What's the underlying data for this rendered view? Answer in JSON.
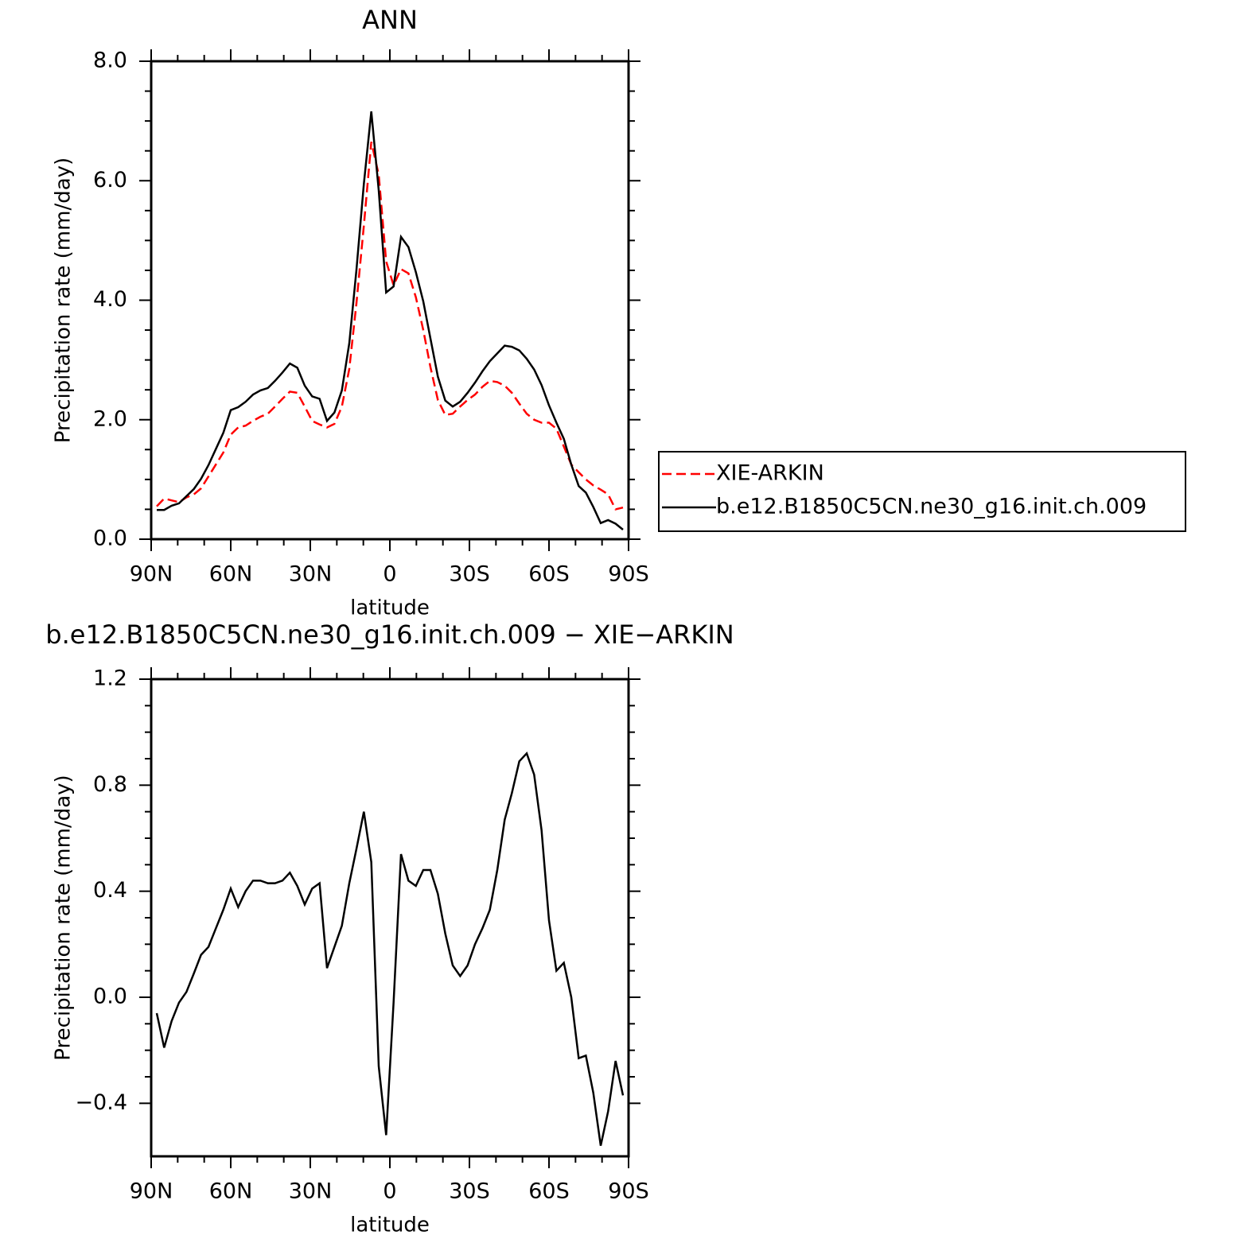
{
  "chart_data": [
    {
      "type": "line",
      "title": "ANN",
      "xlabel": "latitude",
      "ylabel": "Precipitation rate (mm/day)",
      "x": [
        87.9,
        85.1,
        82.3,
        79.5,
        76.7,
        73.9,
        71.2,
        68.4,
        65.6,
        62.8,
        60.0,
        57.2,
        54.4,
        51.6,
        48.8,
        46.0,
        43.3,
        40.5,
        37.7,
        34.9,
        32.1,
        29.3,
        26.5,
        23.7,
        20.9,
        18.1,
        15.3,
        12.6,
        9.8,
        7.0,
        4.2,
        1.4,
        -1.4,
        -4.2,
        -7.0,
        -9.8,
        -12.6,
        -15.3,
        -18.1,
        -20.9,
        -23.7,
        -26.5,
        -29.3,
        -32.1,
        -34.9,
        -37.7,
        -40.5,
        -43.3,
        -46.0,
        -48.8,
        -51.6,
        -54.4,
        -57.2,
        -60.0,
        -62.8,
        -65.6,
        -68.4,
        -71.2,
        -73.9,
        -76.7,
        -79.5,
        -82.3,
        -85.1,
        -87.9
      ],
      "series": [
        {
          "name": "XIE-ARKIN",
          "color": "#ff0000",
          "dash": true,
          "values": [
            0.55,
            0.68,
            0.65,
            0.62,
            0.7,
            0.75,
            0.85,
            1.05,
            1.25,
            1.45,
            1.75,
            1.87,
            1.9,
            1.98,
            2.05,
            2.1,
            2.22,
            2.35,
            2.47,
            2.45,
            2.22,
            1.98,
            1.92,
            1.87,
            1.93,
            2.22,
            2.85,
            3.95,
            5.25,
            6.65,
            6.1,
            4.65,
            4.25,
            4.52,
            4.45,
            4.05,
            3.5,
            2.88,
            2.33,
            2.08,
            2.1,
            2.22,
            2.33,
            2.42,
            2.55,
            2.65,
            2.63,
            2.57,
            2.45,
            2.27,
            2.1,
            2.0,
            1.95,
            1.95,
            1.85,
            1.55,
            1.25,
            1.12,
            1.0,
            0.9,
            0.83,
            0.75,
            0.5,
            0.53
          ]
        },
        {
          "name": "b.e12.B1850C5CN.ne30_g16.init.ch.009",
          "color": "#000000",
          "dash": false,
          "values": [
            0.49,
            0.49,
            0.56,
            0.6,
            0.72,
            0.84,
            1.01,
            1.24,
            1.51,
            1.78,
            2.16,
            2.21,
            2.3,
            2.42,
            2.49,
            2.53,
            2.65,
            2.79,
            2.94,
            2.87,
            2.57,
            2.39,
            2.35,
            1.98,
            2.12,
            2.49,
            3.28,
            4.51,
            5.95,
            7.16,
            5.84,
            4.13,
            4.23,
            5.06,
            4.89,
            4.47,
            3.98,
            3.36,
            2.72,
            2.32,
            2.22,
            2.3,
            2.45,
            2.62,
            2.81,
            2.98,
            3.11,
            3.24,
            3.22,
            3.16,
            3.02,
            2.84,
            2.58,
            2.24,
            1.95,
            1.68,
            1.25,
            0.89,
            0.78,
            0.54,
            0.27,
            0.32,
            0.26,
            0.16
          ]
        }
      ],
      "xlim": [
        90,
        -90
      ],
      "xticks": [
        {
          "value": 90,
          "label": "90N"
        },
        {
          "value": 60,
          "label": "60N"
        },
        {
          "value": 30,
          "label": "30N"
        },
        0,
        {
          "value": -30,
          "label": "30S"
        },
        {
          "value": -60,
          "label": "60S"
        },
        {
          "value": -90,
          "label": "90S"
        }
      ],
      "ylim": [
        0,
        8
      ],
      "yticks": [
        {
          "value": 0,
          "label": "0.0"
        },
        {
          "value": 2,
          "label": "2.0"
        },
        {
          "value": 4,
          "label": "4.0"
        },
        {
          "value": 6,
          "label": "6.0"
        },
        {
          "value": 8,
          "label": "8.0"
        }
      ],
      "legend": "outside right"
    },
    {
      "type": "line",
      "title": "b.e12.B1850C5CN.ne30_g16.init.ch.009 − XIE−ARKIN",
      "xlabel": "latitude",
      "ylabel": "Precipitation rate (mm/day)",
      "x": [
        87.9,
        85.1,
        82.3,
        79.5,
        76.7,
        73.9,
        71.2,
        68.4,
        65.6,
        62.8,
        60.0,
        57.2,
        54.4,
        51.6,
        48.8,
        46.0,
        43.3,
        40.5,
        37.7,
        34.9,
        32.1,
        29.3,
        26.5,
        23.7,
        20.9,
        18.1,
        15.3,
        12.6,
        9.8,
        7.0,
        4.2,
        1.4,
        -1.4,
        -4.2,
        -7.0,
        -9.8,
        -12.6,
        -15.3,
        -18.1,
        -20.9,
        -23.7,
        -26.5,
        -29.3,
        -32.1,
        -34.9,
        -37.7,
        -40.5,
        -43.3,
        -46.0,
        -48.8,
        -51.6,
        -54.4,
        -57.2,
        -60.0,
        -62.8,
        -65.6,
        -68.4,
        -71.2,
        -73.9,
        -76.7,
        -79.5,
        -82.3,
        -85.1,
        -87.9
      ],
      "series": [
        {
          "color": "#000000",
          "dash": false,
          "values": [
            -0.06,
            -0.19,
            -0.09,
            -0.02,
            0.02,
            0.09,
            0.16,
            0.19,
            0.26,
            0.33,
            0.41,
            0.34,
            0.4,
            0.44,
            0.44,
            0.43,
            0.43,
            0.44,
            0.47,
            0.42,
            0.35,
            0.41,
            0.43,
            0.11,
            0.19,
            0.27,
            0.43,
            0.56,
            0.7,
            0.51,
            -0.26,
            -0.52,
            -0.02,
            0.54,
            0.44,
            0.42,
            0.48,
            0.48,
            0.39,
            0.24,
            0.12,
            0.08,
            0.12,
            0.2,
            0.26,
            0.33,
            0.48,
            0.67,
            0.77,
            0.89,
            0.92,
            0.84,
            0.63,
            0.29,
            0.1,
            0.13,
            0.0,
            -0.23,
            -0.22,
            -0.36,
            -0.56,
            -0.43,
            -0.24,
            -0.37
          ]
        }
      ],
      "xlim": [
        90,
        -90
      ],
      "xticks": [
        {
          "value": 90,
          "label": "90N"
        },
        {
          "value": 60,
          "label": "60N"
        },
        {
          "value": 30,
          "label": "30N"
        },
        0,
        {
          "value": -30,
          "label": "30S"
        },
        {
          "value": -60,
          "label": "60S"
        },
        {
          "value": -90,
          "label": "90S"
        }
      ],
      "ylim": [
        -0.6,
        1.2
      ],
      "yticks": [
        {
          "value": -0.4,
          "label": "−0.4"
        },
        {
          "value": 0,
          "label": "0.0"
        },
        {
          "value": 0.4,
          "label": "0.4"
        },
        {
          "value": 0.8,
          "label": "0.8"
        },
        {
          "value": 1.2,
          "label": "1.2"
        }
      ]
    }
  ]
}
